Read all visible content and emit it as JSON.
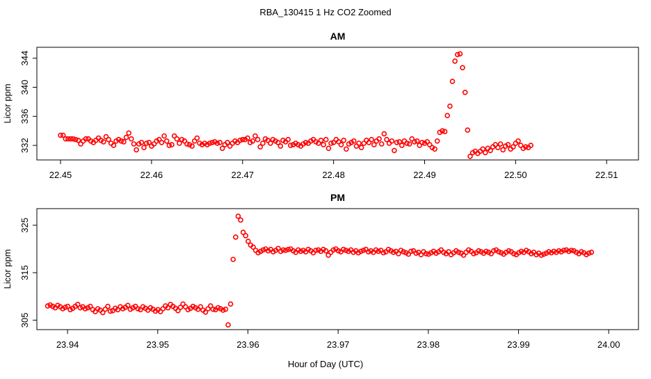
{
  "figure": {
    "title": "RBA_130415  1 Hz CO2 Zoomed",
    "xlabel": "Hour of Day (UTC)"
  },
  "chart_data": [
    {
      "type": "scatter",
      "title": "AM",
      "ylabel": "Licor ppm",
      "xlim": [
        22.4474,
        22.5135
      ],
      "ylim": [
        330.0,
        345.5
      ],
      "xticks": [
        22.45,
        22.46,
        22.47,
        22.48,
        22.49,
        22.5,
        22.51
      ],
      "xtick_labels": [
        "22.45",
        "22.46",
        "22.47",
        "22.48",
        "22.49",
        "22.50",
        "22.51"
      ],
      "yticks": [
        332,
        336,
        340,
        344
      ],
      "ytick_labels": [
        "332",
        "336",
        "340",
        "344"
      ],
      "marker_color": "#ff0000",
      "x_start": 22.45,
      "x_step": 0.0002778,
      "y": [
        333.4,
        333.4,
        332.9,
        332.9,
        332.9,
        332.9,
        332.8,
        332.7,
        332.2,
        332.6,
        332.9,
        332.9,
        332.6,
        332.4,
        332.7,
        333.0,
        332.7,
        332.5,
        333.2,
        332.8,
        332.3,
        332.0,
        332.6,
        332.8,
        332.6,
        332.5,
        333.1,
        333.7,
        332.9,
        332.2,
        331.4,
        332.2,
        332.4,
        331.7,
        332.3,
        332.4,
        331.9,
        332.2,
        332.6,
        332.8,
        332.4,
        333.3,
        332.6,
        332.0,
        332.1,
        333.3,
        332.9,
        332.3,
        332.8,
        332.6,
        332.2,
        332.1,
        331.9,
        332.6,
        333.0,
        332.3,
        332.1,
        332.3,
        332.1,
        332.3,
        332.4,
        332.5,
        332.3,
        332.4,
        331.6,
        332.1,
        332.4,
        331.9,
        332.3,
        332.6,
        332.4,
        332.7,
        332.8,
        332.8,
        333.0,
        332.4,
        332.6,
        333.3,
        332.8,
        331.8,
        332.3,
        332.9,
        332.7,
        332.3,
        332.8,
        332.6,
        332.4,
        331.9,
        332.7,
        332.5,
        332.8,
        332.0,
        332.1,
        332.3,
        332.1,
        331.9,
        332.2,
        332.4,
        332.3,
        332.6,
        332.8,
        332.5,
        332.3,
        332.7,
        332.1,
        332.8,
        331.6,
        332.3,
        332.4,
        332.8,
        332.5,
        332.1,
        332.7,
        331.5,
        332.2,
        332.4,
        332.6,
        331.9,
        332.3,
        331.7,
        332.3,
        332.7,
        332.4,
        332.8,
        332.1,
        332.6,
        332.9,
        332.2,
        333.6,
        332.8,
        332.3,
        332.6,
        331.3,
        332.4,
        332.5,
        332.0,
        332.6,
        332.3,
        332.2,
        332.9,
        332.5,
        332.6,
        332.0,
        332.4,
        332.3,
        332.5,
        332.1,
        331.7,
        331.5,
        332.6,
        333.8,
        334.0,
        333.9,
        336.1,
        337.4,
        340.8,
        343.6,
        344.5,
        344.6,
        342.7,
        339.3,
        334.1,
        330.5,
        331.0,
        331.2,
        330.9,
        331.2,
        331.5,
        331.0,
        331.6,
        331.3,
        331.8,
        332.1,
        331.7,
        332.2,
        331.4,
        331.9,
        332.1,
        331.5,
        331.8,
        332.3,
        332.6,
        332.0,
        331.6,
        331.8,
        331.7,
        332.0
      ]
    },
    {
      "type": "scatter",
      "title": "PM",
      "ylabel": "Licor ppm",
      "xlim": [
        23.9366,
        24.0033
      ],
      "ylim": [
        303.0,
        328.5
      ],
      "xticks": [
        23.94,
        23.95,
        23.96,
        23.97,
        23.98,
        23.99,
        24.0
      ],
      "xtick_labels": [
        "23.94",
        "23.95",
        "23.96",
        "23.97",
        "23.98",
        "23.99",
        "24.00"
      ],
      "yticks": [
        305,
        315,
        325
      ],
      "ytick_labels": [
        "305",
        "315",
        "325"
      ],
      "marker_color": "#ff0000",
      "x_start": 23.9378,
      "x_step": 0.0002778,
      "y": [
        308.0,
        308.2,
        307.9,
        307.6,
        308.1,
        307.8,
        307.4,
        307.7,
        307.9,
        307.2,
        307.5,
        307.9,
        308.3,
        307.6,
        307.8,
        307.4,
        307.6,
        307.9,
        307.2,
        306.8,
        307.4,
        307.1,
        306.6,
        307.3,
        307.9,
        306.9,
        307.0,
        307.5,
        307.2,
        307.8,
        307.4,
        307.7,
        308.1,
        307.3,
        307.6,
        307.9,
        307.4,
        307.2,
        307.8,
        307.5,
        307.1,
        307.6,
        307.3,
        306.9,
        307.2,
        306.8,
        307.4,
        308.0,
        307.6,
        308.3,
        307.9,
        307.5,
        307.0,
        307.7,
        308.4,
        307.8,
        307.2,
        307.5,
        307.9,
        307.6,
        307.3,
        307.8,
        307.1,
        306.7,
        307.4,
        308.0,
        307.3,
        307.2,
        307.6,
        307.4,
        307.1,
        307.3,
        304.0,
        308.4,
        317.8,
        322.5,
        326.9,
        326.1,
        323.5,
        322.8,
        321.6,
        320.8,
        320.4,
        319.7,
        319.2,
        319.5,
        319.8,
        320.0,
        319.6,
        319.9,
        319.4,
        319.7,
        320.1,
        319.5,
        319.8,
        319.7,
        319.9,
        320.0,
        319.6,
        319.3,
        319.8,
        319.5,
        319.7,
        319.4,
        319.9,
        319.6,
        319.2,
        319.7,
        319.8,
        319.5,
        319.9,
        319.6,
        318.7,
        319.3,
        319.8,
        320.0,
        319.6,
        319.4,
        319.9,
        319.7,
        319.5,
        319.8,
        319.3,
        319.6,
        319.2,
        319.5,
        319.7,
        319.9,
        319.4,
        319.6,
        319.3,
        319.8,
        319.5,
        319.7,
        319.2,
        319.4,
        319.9,
        319.6,
        319.3,
        319.5,
        319.0,
        319.7,
        319.4,
        319.2,
        318.9,
        319.5,
        319.6,
        319.1,
        319.3,
        318.8,
        319.4,
        319.0,
        318.9,
        319.2,
        319.5,
        319.1,
        319.4,
        319.8,
        319.3,
        319.0,
        319.4,
        318.8,
        319.2,
        319.6,
        319.3,
        319.1,
        318.7,
        319.3,
        319.8,
        319.5,
        319.0,
        319.2,
        319.6,
        319.4,
        319.1,
        319.5,
        319.3,
        319.0,
        319.6,
        319.8,
        319.4,
        319.2,
        318.9,
        319.3,
        319.6,
        319.4,
        319.0,
        318.8,
        319.2,
        319.5,
        319.3,
        319.7,
        319.4,
        319.0,
        319.3,
        318.8,
        319.1,
        318.7,
        318.9,
        319.1,
        319.4,
        319.2,
        319.5,
        319.3,
        319.6,
        319.4,
        319.7,
        319.8,
        319.5,
        319.7,
        319.6,
        319.3,
        319.0,
        319.4,
        319.2,
        318.8,
        319.1,
        319.3
      ]
    }
  ]
}
